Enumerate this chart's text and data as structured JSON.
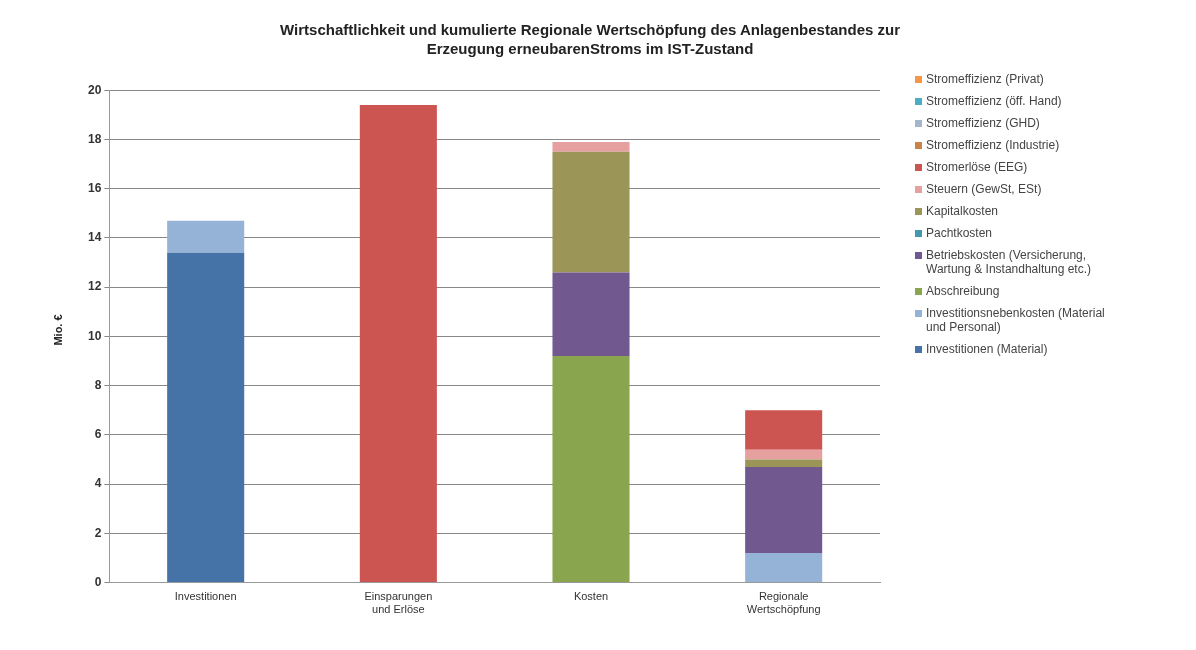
{
  "chart_data": {
    "type": "bar",
    "title": "Wirtschaftlichkeit und kumulierte Regionale Wertschöpfung des Anlagenbestandes zur Erzeugung erneubarenStroms im IST-Zustand",
    "ylabel": "Mio. €",
    "categories": [
      "Investitionen",
      "Einsparungen und Erlöse",
      "Kosten",
      "Regionale Wertschöpfung"
    ],
    "stacked": true,
    "grid": "y",
    "legend": "right",
    "ylim": [
      0,
      20
    ],
    "yticks": [
      0,
      2,
      4,
      6,
      8,
      10,
      12,
      14,
      16,
      18,
      20
    ],
    "series": [
      {
        "name": "Investitionen (Material)",
        "color": "#4572a7",
        "values": [
          13.4,
          null,
          null,
          null
        ]
      },
      {
        "name": "Investitionsnebenkosten (Material und Personal)",
        "color": "#95b3d7",
        "values": [
          1.3,
          null,
          null,
          1.2
        ]
      },
      {
        "name": "Abschreibung",
        "color": "#89a54e",
        "values": [
          null,
          null,
          9.2,
          null
        ]
      },
      {
        "name": "Betriebskosten (Versicherung, Wartung & Instandhaltung etc.)",
        "color": "#71588f",
        "values": [
          null,
          null,
          3.4,
          3.5
        ]
      },
      {
        "name": "Pachtkosten",
        "color": "#4198af",
        "values": [
          null,
          null,
          null,
          null
        ]
      },
      {
        "name": "Kapitalkosten",
        "color": "#9b9558",
        "values": [
          null,
          null,
          4.9,
          0.3
        ]
      },
      {
        "name": "Steuern (GewSt, ESt)",
        "color": "#e6a0a0",
        "values": [
          null,
          null,
          0.4,
          0.4
        ]
      },
      {
        "name": "Stromerlöse (EEG)",
        "color": "#cc5552",
        "values": [
          null,
          19.4,
          null,
          1.6
        ]
      },
      {
        "name": "Stromeffizienz (Industrie)",
        "color": "#c9844a",
        "values": [
          null,
          null,
          null,
          null
        ]
      },
      {
        "name": "Stromeffizienz (GHD)",
        "color": "#a5b6cc",
        "values": [
          null,
          null,
          null,
          null
        ]
      },
      {
        "name": "Stromeffizienz (öff. Hand)",
        "color": "#4bacc6",
        "values": [
          null,
          null,
          null,
          null
        ]
      },
      {
        "name": "Stromeffizienz (Privat)",
        "color": "#f79646",
        "values": [
          null,
          null,
          null,
          null
        ]
      }
    ]
  }
}
